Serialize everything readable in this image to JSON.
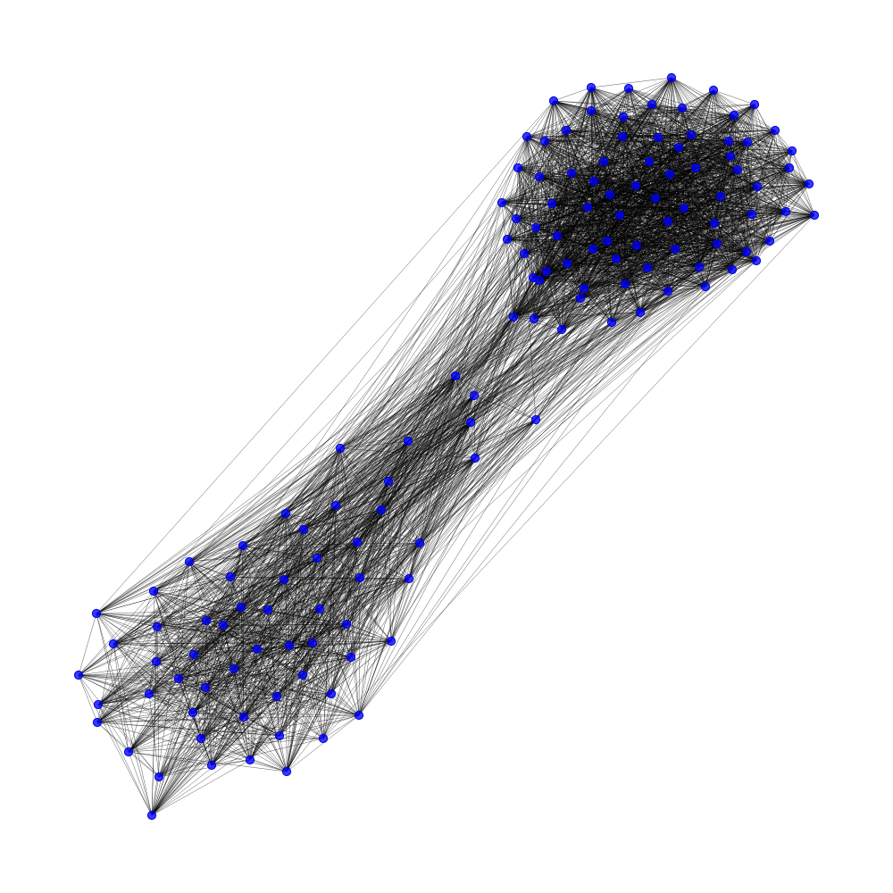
{
  "colors": {
    "background": "#ffffff",
    "node": "#0000ff",
    "edge": "#000000"
  },
  "graph": {
    "layout": "force-directed",
    "clusters": [
      {
        "id": "upper-right",
        "node_count": 80,
        "internal_edge_probability": 0.6
      },
      {
        "id": "lower-left",
        "node_count": 60,
        "internal_edge_probability": 0.55
      }
    ],
    "bridge_edge_probability": 0.07,
    "edge_color_name": "black",
    "node_color_name": "blue"
  }
}
